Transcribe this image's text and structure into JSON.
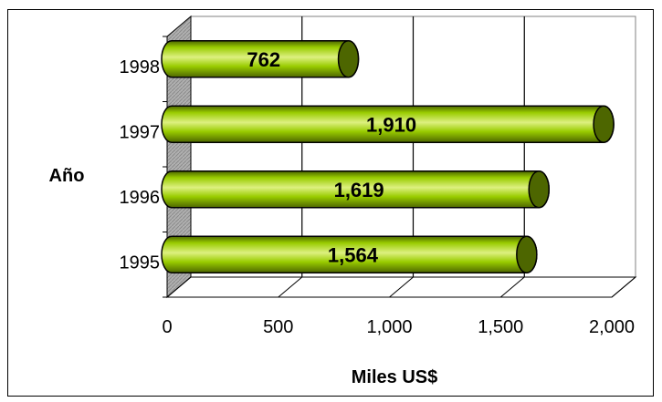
{
  "chart_data": {
    "type": "bar",
    "orientation": "horizontal",
    "categories": [
      "1995",
      "1996",
      "1997",
      "1998"
    ],
    "values": [
      1564,
      1619,
      1910,
      762
    ],
    "value_labels": [
      "1,564",
      "1,619",
      "1,910",
      "762"
    ],
    "x_ticks": [
      "0",
      "500",
      "1,000",
      "1,500",
      "2,000"
    ],
    "x_tick_values": [
      0,
      500,
      1000,
      1500,
      2000
    ],
    "xlim": [
      0,
      2000
    ],
    "xlabel": "Miles US$",
    "ylabel": "Año",
    "grid": "vertical",
    "bar_color": "#99cc00",
    "bar_color_dark": "#4d6600",
    "bar_style": "3d-cylinder"
  }
}
